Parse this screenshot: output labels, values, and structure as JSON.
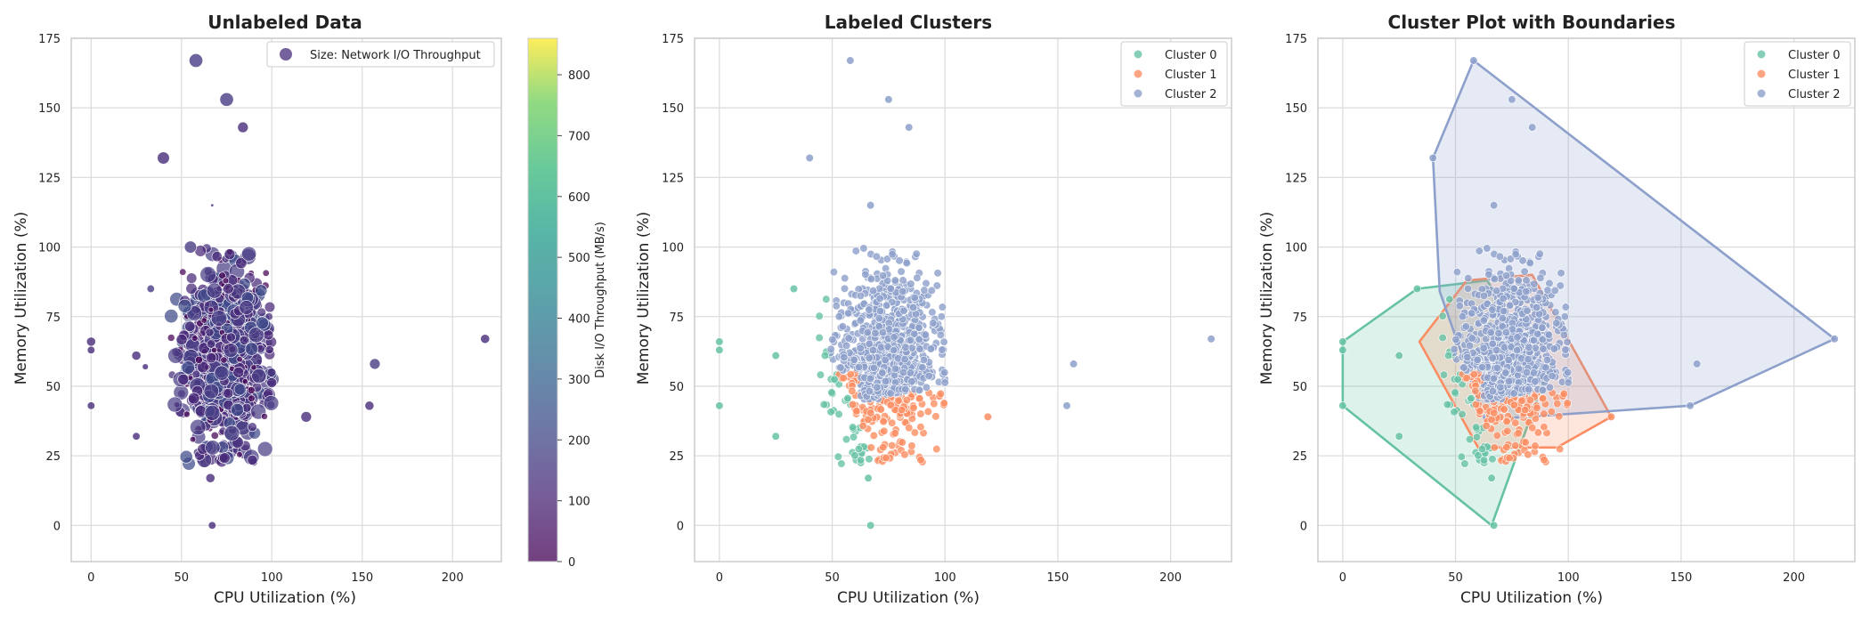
{
  "figure": {
    "panels": [
      {
        "title": "Unlabeled Data",
        "xlabel": "CPU Utilization (%)",
        "ylabel": "Memory Utilization (%)",
        "legend": [
          "Size: Network I/O Throughput"
        ],
        "colorbar_label": "Disk I/O Throughput (MB/s)"
      },
      {
        "title": "Labeled Clusters",
        "xlabel": "CPU Utilization (%)",
        "ylabel": "Memory Utilization (%)",
        "legend": [
          "Cluster 0",
          "Cluster 1",
          "Cluster 2"
        ]
      },
      {
        "title": "Cluster Plot with Boundaries",
        "xlabel": "CPU Utilization (%)",
        "ylabel": "Memory Utilization (%)",
        "legend": [
          "Cluster 0",
          "Cluster 1",
          "Cluster 2"
        ]
      }
    ]
  },
  "chart_data": [
    {
      "type": "scatter",
      "title": "Unlabeled Data",
      "xlabel": "CPU Utilization (%)",
      "ylabel": "Memory Utilization (%)",
      "xlim": [
        -11,
        227
      ],
      "ylim": [
        -13,
        175
      ],
      "xticks": [
        0,
        50,
        100,
        150,
        200
      ],
      "yticks": [
        0,
        25,
        50,
        75,
        100,
        125,
        150,
        175
      ],
      "grid": true,
      "legend_position": "top-right",
      "legend": [
        "Size: Network I/O Throughput"
      ],
      "colorbar": {
        "label": "Disk I/O Throughput (MB/s)",
        "ticks": [
          0,
          100,
          200,
          300,
          400,
          500,
          600,
          700,
          800
        ],
        "range": [
          0,
          860
        ],
        "colormap": "viridis"
      },
      "main_cloud": {
        "x_range": [
          45,
          100
        ],
        "y_range": [
          22,
          100
        ],
        "center": [
          75,
          60
        ],
        "approx_points": 1000,
        "color": "#472c7a"
      },
      "outliers": [
        {
          "x": 58,
          "y": 167,
          "size": 9,
          "color": "#4a3d85"
        },
        {
          "x": 75,
          "y": 153,
          "size": 9,
          "color": "#4a3d85"
        },
        {
          "x": 84,
          "y": 143,
          "size": 7,
          "color": "#472c7a"
        },
        {
          "x": 40,
          "y": 132,
          "size": 8,
          "color": "#472c7a"
        },
        {
          "x": 67,
          "y": 115,
          "size": 2,
          "color": "#472c7a"
        },
        {
          "x": 33,
          "y": 85,
          "size": 5,
          "color": "#4a3d85"
        },
        {
          "x": 0,
          "y": 66,
          "size": 6,
          "color": "#472c7a"
        },
        {
          "x": 0,
          "y": 63,
          "size": 5,
          "color": "#472c7a"
        },
        {
          "x": 0,
          "y": 43,
          "size": 5,
          "color": "#472c7a"
        },
        {
          "x": 25,
          "y": 61,
          "size": 6,
          "color": "#472c7a"
        },
        {
          "x": 25,
          "y": 32,
          "size": 5,
          "color": "#472c7a"
        },
        {
          "x": 30,
          "y": 57,
          "size": 4,
          "color": "#472c7a"
        },
        {
          "x": 218,
          "y": 67,
          "size": 6,
          "color": "#472c7a"
        },
        {
          "x": 157,
          "y": 58,
          "size": 7,
          "color": "#4a3d85"
        },
        {
          "x": 154,
          "y": 43,
          "size": 6,
          "color": "#472c7a"
        },
        {
          "x": 119,
          "y": 39,
          "size": 7,
          "color": "#472c7a"
        },
        {
          "x": 66,
          "y": 17,
          "size": 6,
          "color": "#472c7a"
        },
        {
          "x": 67,
          "y": 0,
          "size": 5,
          "color": "#472c7a"
        },
        {
          "x": 55,
          "y": 100,
          "size": 8,
          "color": "#4a3d85"
        }
      ]
    },
    {
      "type": "scatter",
      "title": "Labeled Clusters",
      "xlabel": "CPU Utilization (%)",
      "ylabel": "Memory Utilization (%)",
      "xlim": [
        -11,
        227
      ],
      "ylim": [
        -13,
        175
      ],
      "xticks": [
        0,
        50,
        100,
        150,
        200
      ],
      "yticks": [
        0,
        25,
        50,
        75,
        100,
        125,
        150,
        175
      ],
      "grid": true,
      "legend_position": "top-right",
      "series": [
        {
          "name": "Cluster 0",
          "color": "#66c2a5",
          "main_cloud": {
            "x_range": [
              35,
              95
            ],
            "y_range": [
              20,
              88
            ],
            "description": "left and lower crescent"
          },
          "points": [
            [
              0,
              66
            ],
            [
              0,
              63
            ],
            [
              0,
              43
            ],
            [
              25,
              32
            ],
            [
              25,
              61
            ],
            [
              33,
              85
            ],
            [
              66,
              17
            ],
            [
              67,
              0
            ]
          ]
        },
        {
          "name": "Cluster 1",
          "color": "#fc8d62",
          "main_cloud": {
            "x_range": [
              45,
              100
            ],
            "y_range": [
              25,
              68
            ],
            "description": "lower band"
          },
          "points": [
            [
              119,
              39
            ]
          ]
        },
        {
          "name": "Cluster 2",
          "color": "#8da0cb",
          "main_cloud": {
            "x_range": [
              52,
              100
            ],
            "y_range": [
              38,
              100
            ],
            "description": "upper right mass"
          },
          "points": [
            [
              58,
              167
            ],
            [
              75,
              153
            ],
            [
              84,
              143
            ],
            [
              40,
              132
            ],
            [
              67,
              115
            ],
            [
              218,
              67
            ],
            [
              157,
              58
            ],
            [
              154,
              43
            ]
          ]
        }
      ]
    },
    {
      "type": "scatter",
      "title": "Cluster Plot with Boundaries",
      "xlabel": "CPU Utilization (%)",
      "ylabel": "Memory Utilization (%)",
      "xlim": [
        -11,
        227
      ],
      "ylim": [
        -13,
        175
      ],
      "xticks": [
        0,
        50,
        100,
        150,
        200
      ],
      "yticks": [
        0,
        25,
        50,
        75,
        100,
        125,
        150,
        175
      ],
      "grid": true,
      "legend_position": "top-right",
      "series": [
        {
          "name": "Cluster 0",
          "color": "#66c2a5",
          "hull": [
            [
              0,
              66
            ],
            [
              33,
              85
            ],
            [
              64,
              88
            ],
            [
              90,
              54
            ],
            [
              66,
              0
            ],
            [
              0,
              43
            ],
            [
              0,
              62
            ]
          ]
        },
        {
          "name": "Cluster 1",
          "color": "#fc8d62",
          "hull": [
            [
              34,
              66
            ],
            [
              55,
              88
            ],
            [
              84,
              90
            ],
            [
              119,
              39
            ],
            [
              95,
              28
            ],
            [
              60,
              28
            ]
          ]
        },
        {
          "name": "Cluster 2",
          "color": "#8da0cb",
          "hull": [
            [
              58,
              167
            ],
            [
              218,
              67
            ],
            [
              154,
              43
            ],
            [
              63,
              38
            ],
            [
              43,
              84
            ],
            [
              40,
              132
            ]
          ]
        }
      ]
    }
  ]
}
